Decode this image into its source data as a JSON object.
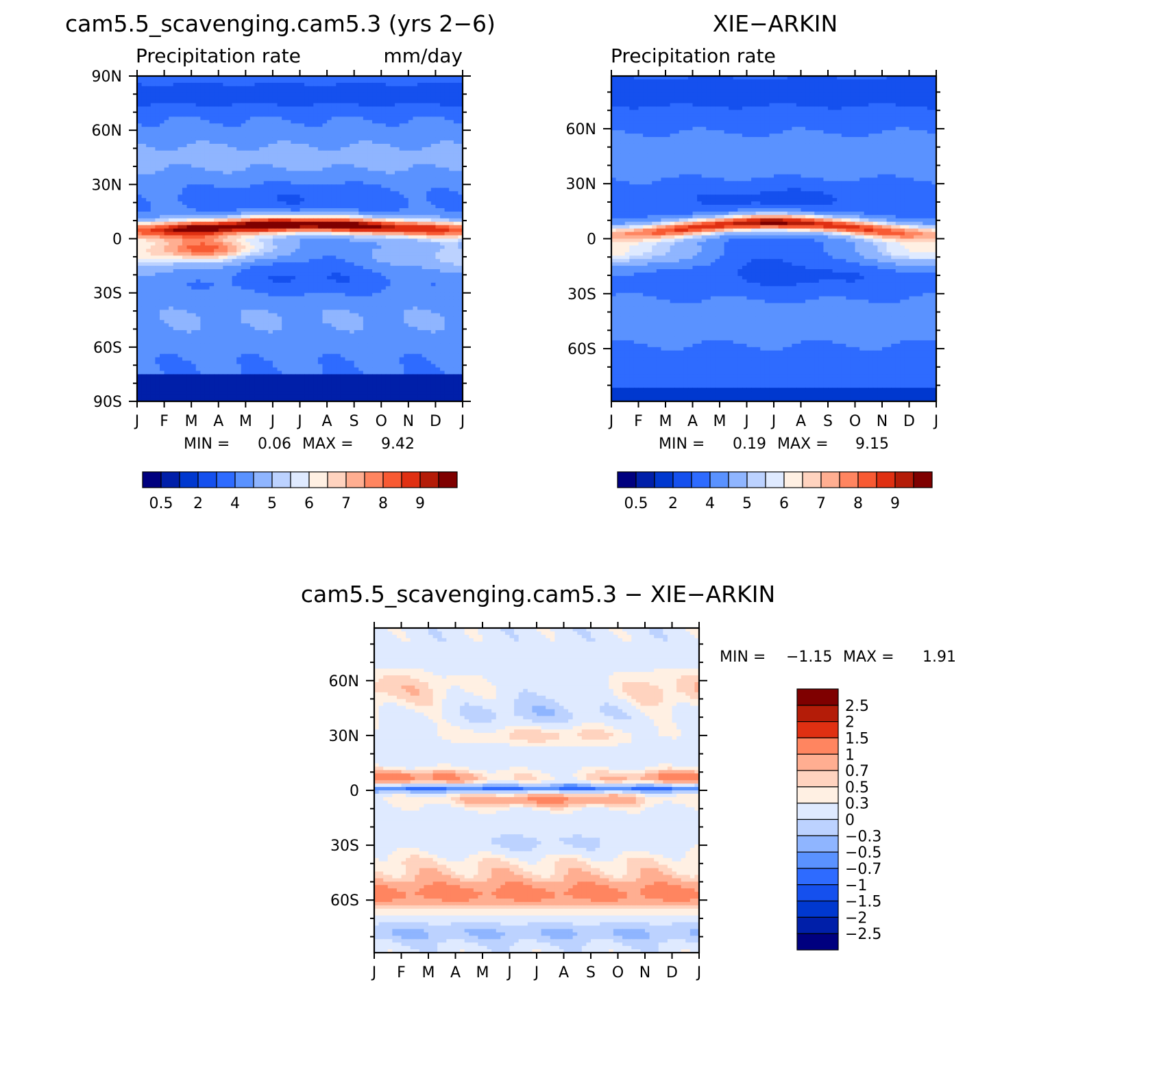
{
  "colors": {
    "precip_scale": [
      "#00007f",
      "#001fa9",
      "#0038cf",
      "#1550ee",
      "#2e6bff",
      "#5a92ff",
      "#8fb5ff",
      "#bcd2ff",
      "#dfeaff",
      "#fff0e3",
      "#ffd3bf",
      "#ffae91",
      "#ff8560",
      "#f85a33",
      "#e03012",
      "#b41c08",
      "#7f0000"
    ],
    "diff_scale": [
      "#7f0000",
      "#b41c08",
      "#e03012",
      "#ff8560",
      "#ffae91",
      "#ffd3bf",
      "#fff0e3",
      "#dfeaff",
      "#bcd2ff",
      "#8fb5ff",
      "#5a92ff",
      "#2e6bff",
      "#1550ee",
      "#0038cf",
      "#001fa9",
      "#00007f"
    ]
  },
  "chart_data": [
    {
      "id": "model",
      "type": "heatmap",
      "title": "cam5.5_scavenging.cam5.3 (yrs 2−6)",
      "subtitle_left": "Precipitation rate",
      "subtitle_right": "mm/day",
      "x_ticks": [
        "J",
        "F",
        "M",
        "A",
        "M",
        "J",
        "J",
        "A",
        "S",
        "O",
        "N",
        "D",
        "J"
      ],
      "y_ticks": [
        {
          "value": 90,
          "label": "90N"
        },
        {
          "value": 60,
          "label": "60N"
        },
        {
          "value": 30,
          "label": "30N"
        },
        {
          "value": 0,
          "label": "0"
        },
        {
          "value": -30,
          "label": "30S"
        },
        {
          "value": -60,
          "label": "60S"
        },
        {
          "value": -90,
          "label": "90S"
        }
      ],
      "ylim": [
        -90,
        90
      ],
      "xlim": [
        0,
        12
      ],
      "min_label": "MIN =",
      "min_value": "0.06",
      "max_label": "MAX =",
      "max_value": "9.42",
      "colorbar_labels": [
        "0.5",
        "2",
        "4",
        "5",
        "6",
        "7",
        "8",
        "9"
      ],
      "dry_floor_lat": -75,
      "itcz": {
        "lat_jan": 5,
        "lat_aug": 8,
        "peak_mm": 9.42
      },
      "secondary": {
        "lat": -5,
        "month": 2.8,
        "peak_mm": 7.2
      }
    },
    {
      "id": "obs",
      "type": "heatmap",
      "title": "XIE−ARKIN",
      "subtitle_left": "Precipitation rate",
      "x_ticks": [
        "J",
        "F",
        "M",
        "A",
        "M",
        "J",
        "J",
        "A",
        "S",
        "O",
        "N",
        "D",
        "J"
      ],
      "y_ticks": [
        {
          "value": 60,
          "label": "60N"
        },
        {
          "value": 30,
          "label": "30N"
        },
        {
          "value": 0,
          "label": "0"
        },
        {
          "value": -30,
          "label": "30S"
        },
        {
          "value": -60,
          "label": "60S"
        }
      ],
      "ylim": [
        -88.75,
        88.75
      ],
      "xlim": [
        0,
        12
      ],
      "min_label": "MIN =",
      "min_value": "0.19",
      "max_label": "MAX =",
      "max_value": "9.15",
      "colorbar_labels": [
        "0.5",
        "2",
        "4",
        "5",
        "6",
        "7",
        "8",
        "9"
      ],
      "itcz": {
        "lat_jan": 3,
        "lat_aug": 9,
        "peak_mm": 9.15
      }
    },
    {
      "id": "diff",
      "type": "heatmap",
      "title": "cam5.5_scavenging.cam5.3 − XIE−ARKIN",
      "x_ticks": [
        "J",
        "F",
        "M",
        "A",
        "M",
        "J",
        "J",
        "A",
        "S",
        "O",
        "N",
        "D",
        "J"
      ],
      "y_ticks": [
        {
          "value": 60,
          "label": "60N"
        },
        {
          "value": 30,
          "label": "30N"
        },
        {
          "value": 0,
          "label": "0"
        },
        {
          "value": -30,
          "label": "30S"
        },
        {
          "value": -60,
          "label": "60S"
        }
      ],
      "ylim": [
        -88.75,
        88.75
      ],
      "xlim": [
        0,
        12
      ],
      "min_label": "MIN =",
      "min_value": "−1.15",
      "max_label": "MAX =",
      "max_value": "1.91",
      "colorbar_labels": [
        "2.5",
        "2",
        "1.5",
        "1",
        "0.7",
        "0.5",
        "0.3",
        "0",
        "−0.3",
        "−0.5",
        "−0.7",
        "−1",
        "−1.5",
        "−2",
        "−2.5"
      ]
    }
  ]
}
